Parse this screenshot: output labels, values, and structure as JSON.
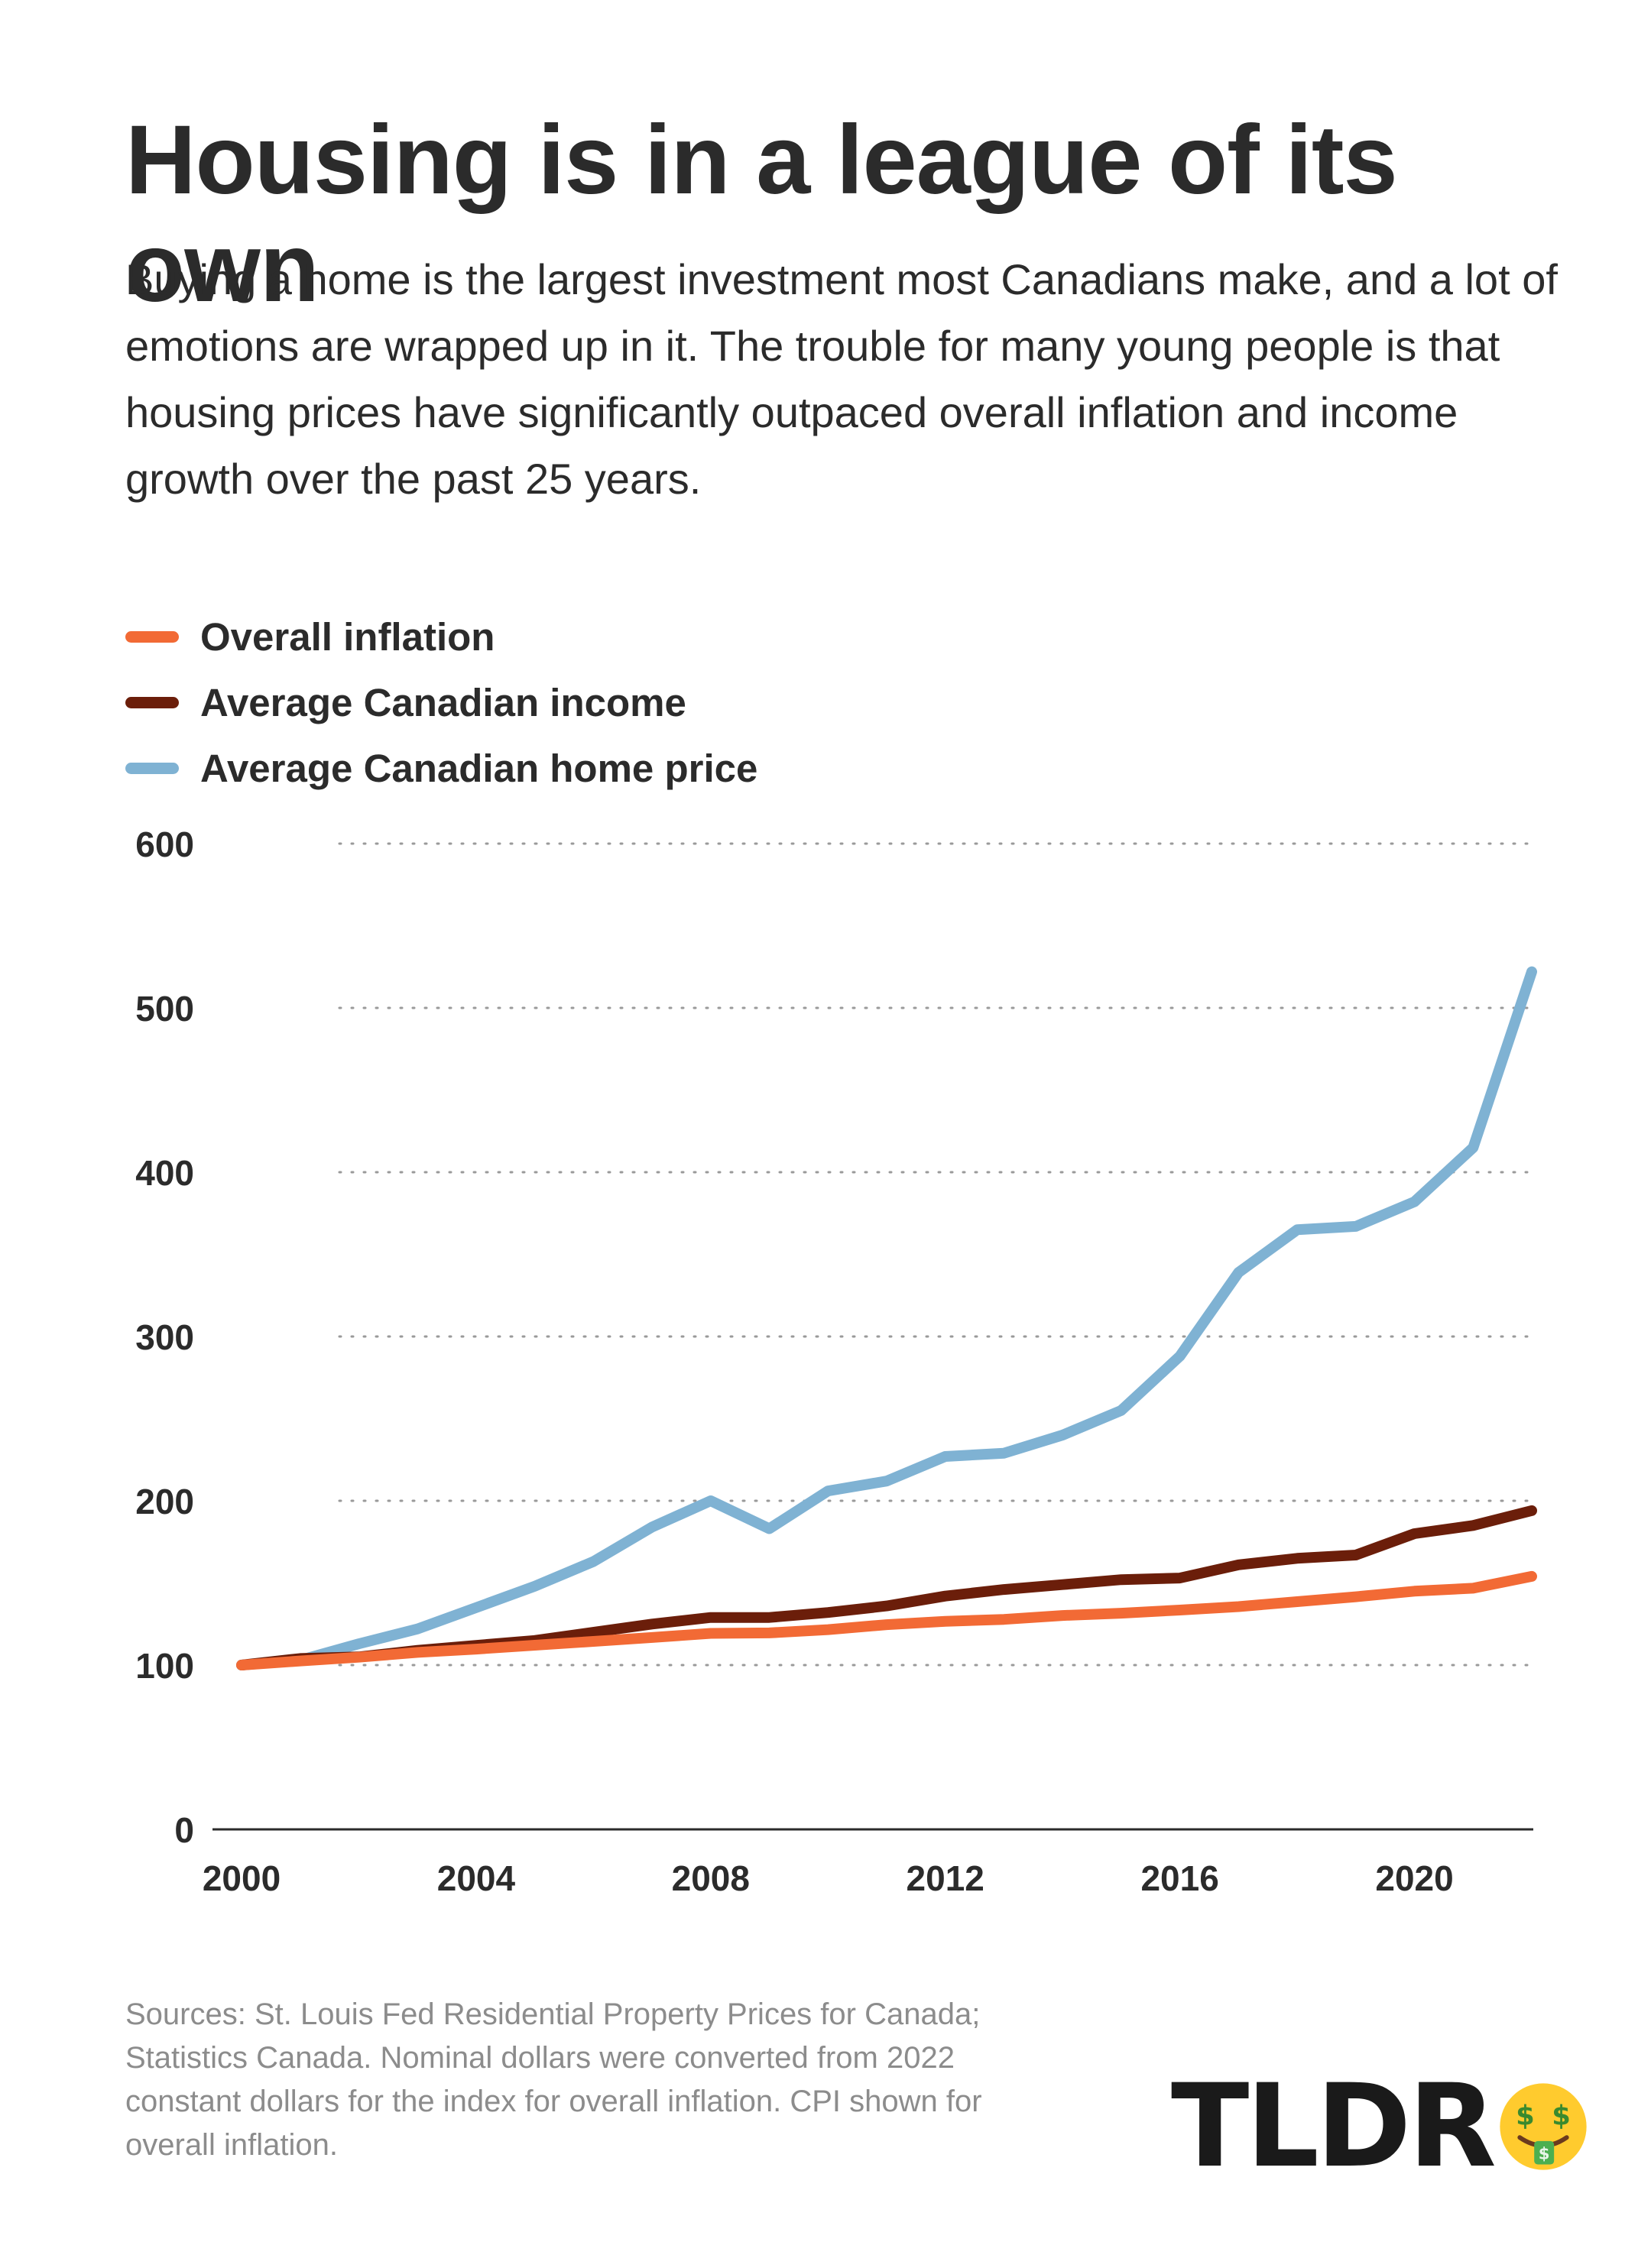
{
  "header": {
    "title": "Housing is in a league of its own",
    "subtitle": "Buying a home is the largest investment most Canadians make, and a lot of emotions are wrapped up in it. The trouble for many young people is that housing prices have significantly outpaced overall inflation and income growth over the past 25 years."
  },
  "legend": [
    {
      "label": "Overall inflation",
      "color": "#f26a35"
    },
    {
      "label": "Average Canadian income",
      "color": "#6b1e0a"
    },
    {
      "label": "Average Canadian home price",
      "color": "#7fb2d3"
    }
  ],
  "chart_data": {
    "type": "line",
    "x": [
      2000,
      2001,
      2002,
      2003,
      2004,
      2005,
      2006,
      2007,
      2008,
      2009,
      2010,
      2011,
      2012,
      2013,
      2014,
      2015,
      2016,
      2017,
      2018,
      2019,
      2020,
      2021,
      2022
    ],
    "series": [
      {
        "name": "Overall inflation",
        "color": "#f26a35",
        "values": [
          100,
          102.5,
          104.8,
          107.7,
          109.7,
          112.1,
          114.4,
          116.8,
          119.3,
          119.6,
          121.6,
          124.6,
          126.6,
          127.8,
          130.2,
          131.6,
          133.5,
          135.6,
          138.6,
          141.6,
          145.0,
          146.8,
          154.0
        ]
      },
      {
        "name": "Average Canadian income",
        "color": "#6b1e0a",
        "values": [
          100,
          104.0,
          105.0,
          109.0,
          112.0,
          115.0,
          120.0,
          125.0,
          129.0,
          129.0,
          132.0,
          136.0,
          142.0,
          146.0,
          149.0,
          152.0,
          153.0,
          161.0,
          165.0,
          167.0,
          180.0,
          185.0,
          194.0
        ]
      },
      {
        "name": "Average Canadian home price",
        "color": "#7fb2d3",
        "values": [
          100,
          103.0,
          113.0,
          122.0,
          135.0,
          148.0,
          163.0,
          184.0,
          200.0,
          183.0,
          206.0,
          212.0,
          227.0,
          229.0,
          240.0,
          255.0,
          288.0,
          339.0,
          365.0,
          367.0,
          382.0,
          415.0,
          522.0
        ]
      }
    ],
    "x_ticks": [
      "2000",
      "2004",
      "2008",
      "2012",
      "2016",
      "2020"
    ],
    "y_ticks": [
      "0",
      "100",
      "200",
      "300",
      "400",
      "500",
      "600"
    ],
    "xlim": [
      2000,
      2022
    ],
    "ylim": [
      0,
      600
    ],
    "grid": "horizontal dotted",
    "legend_position": "top-left"
  },
  "footer": {
    "sources": "Sources: St. Louis Fed Residential Property Prices for Canada; Statistics Canada. Nominal dollars were converted from 2022 constant dollars for the index for overall inflation. CPI shown for overall inflation.",
    "logo_text": "TLDR",
    "logo_icon": "money-mouth-face-icon"
  }
}
